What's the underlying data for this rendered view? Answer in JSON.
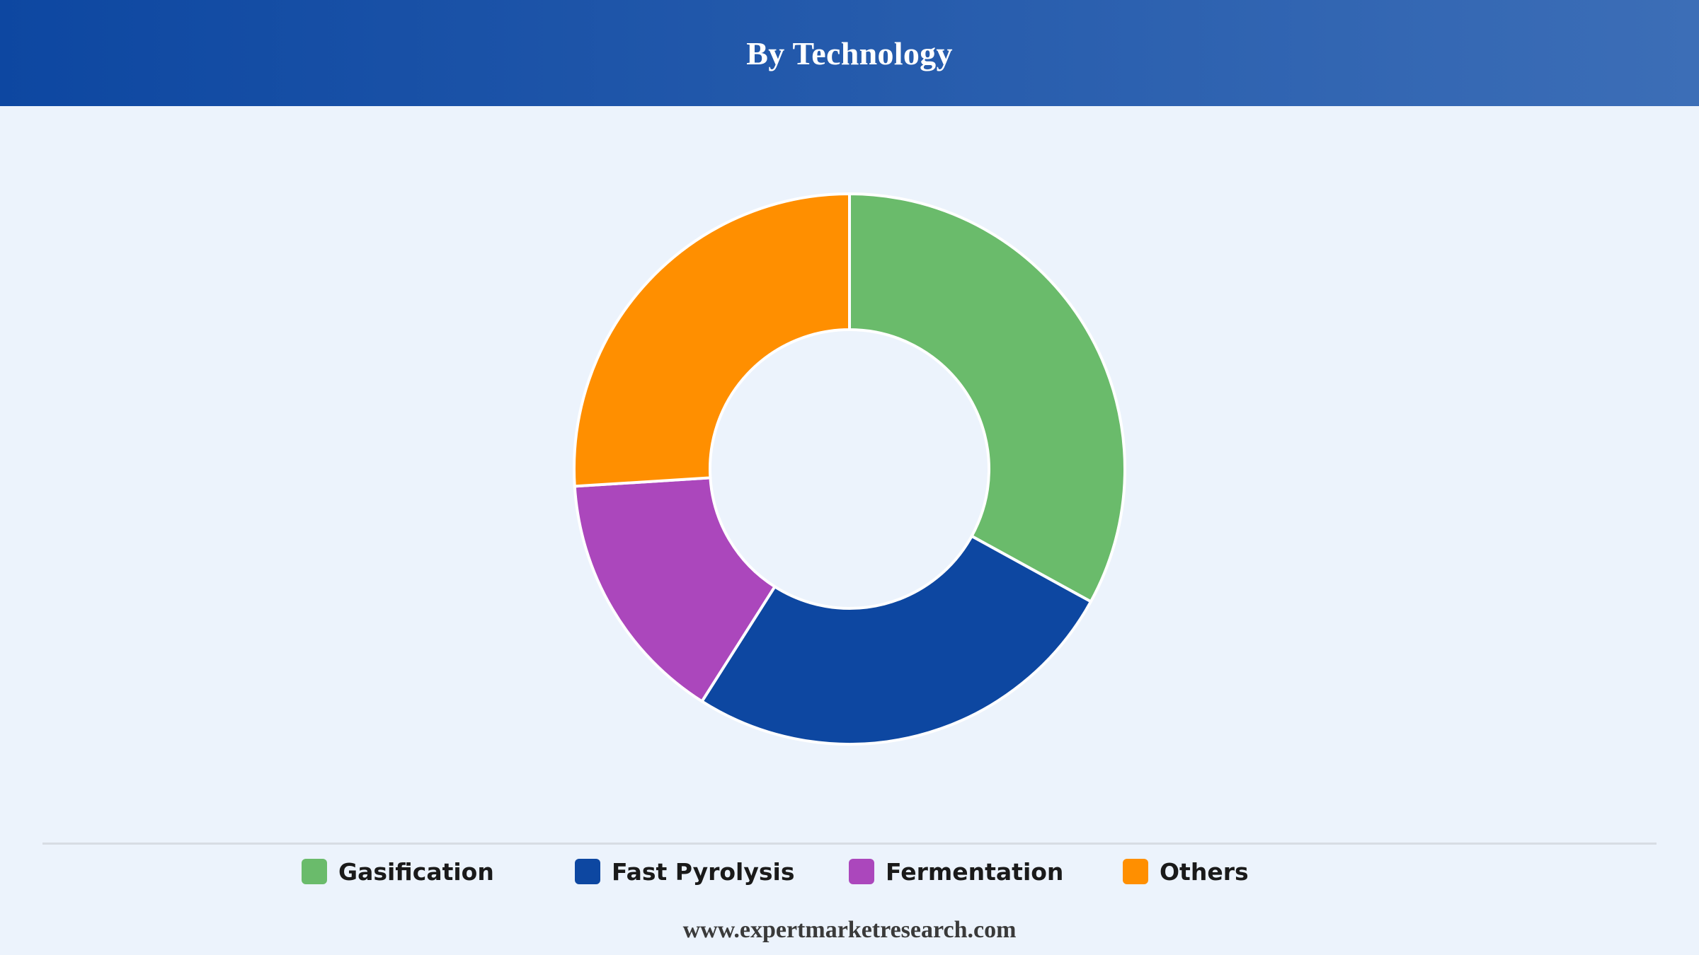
{
  "header": {
    "title": "By Technology"
  },
  "chart_data": {
    "type": "pie",
    "donut": true,
    "categories": [
      "Gasification",
      "Fast Pyrolysis",
      "Fermentation",
      "Others"
    ],
    "values": [
      33,
      26,
      15,
      26
    ],
    "unit": "%",
    "colors": [
      "#6abb6b",
      "#0d47a1",
      "#ab47bc",
      "#ff8f00"
    ],
    "legend_position": "bottom"
  },
  "footer": {
    "source": "www.expertmarketresearch.com"
  }
}
